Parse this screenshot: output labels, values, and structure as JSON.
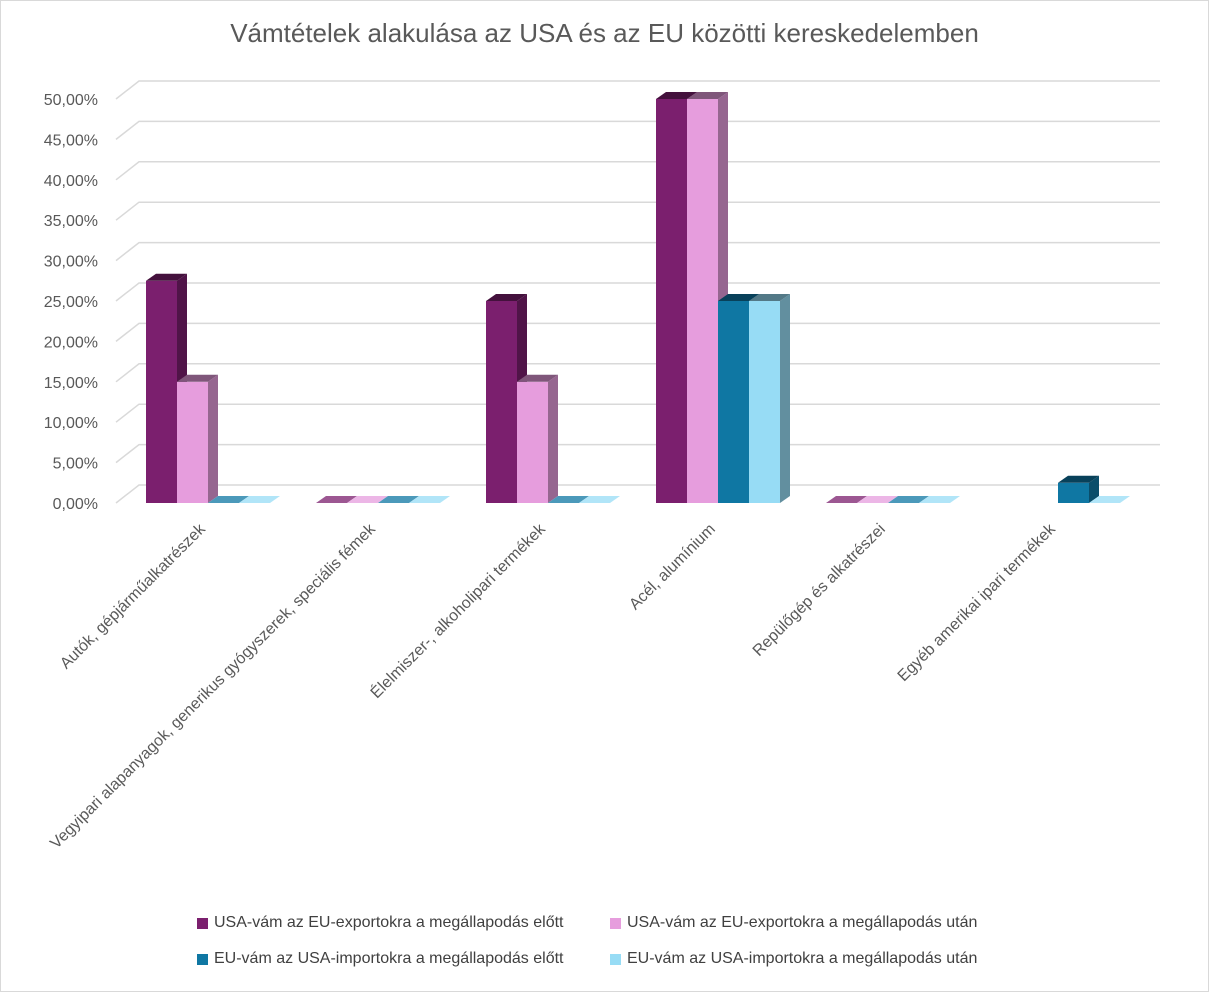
{
  "chart_data": {
    "type": "bar",
    "title": "Vámtételek alakulása az USA és az EU közötti kereskedelemben",
    "categories": [
      "Autók, gépjárműalkatrészek",
      "Vegyipari alapanyagok, generikus gyógyszerek, speciális fémek",
      "Élelmiszer-, alkoholipari termékek",
      "Acél, alumínium",
      "Repülőgép és alkatrészei",
      "Egyéb amerikai ipari termékek"
    ],
    "series": [
      {
        "name": "USA-vám az EU-exportokra a megállapodás előtt",
        "color": "#7b1f6e",
        "values": [
          27.5,
          0,
          25,
          50,
          0,
          null
        ]
      },
      {
        "name": "USA-vám az EU-exportokra a megállapodás után",
        "color": "#e69ddd",
        "values": [
          15,
          0,
          15,
          50,
          0,
          null
        ]
      },
      {
        "name": "EU-vám az USA-importokra a megállapodás előtt",
        "color": "#0f77a3",
        "values": [
          0,
          0,
          0,
          25,
          0,
          2.5
        ]
      },
      {
        "name": "EU-vám az USA-importokra a megállapodás után",
        "color": "#97dcf5",
        "values": [
          0,
          0,
          0,
          25,
          0,
          0
        ]
      }
    ],
    "yticks": [
      "0,00%",
      "5,00%",
      "10,00%",
      "15,00%",
      "20,00%",
      "25,00%",
      "30,00%",
      "35,00%",
      "40,00%",
      "45,00%",
      "50,00%"
    ],
    "ylim": [
      0,
      50
    ],
    "xlabel": "",
    "ylabel": "",
    "legend_position": "bottom"
  }
}
